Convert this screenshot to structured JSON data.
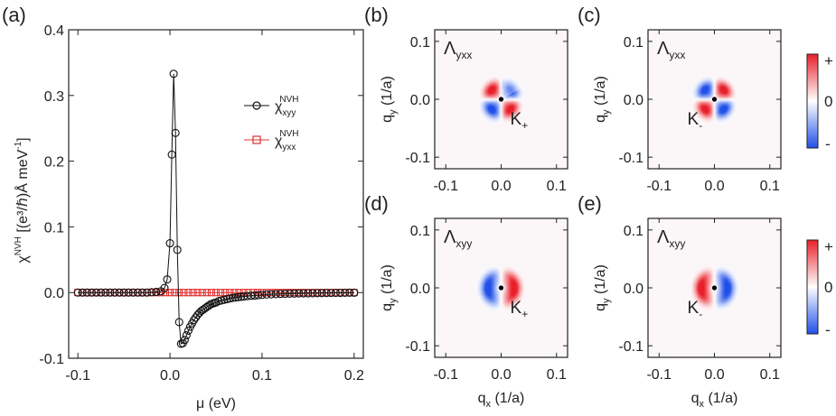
{
  "chart_data": [
    {
      "type": "line",
      "panel_label": "(a)",
      "xlabel": "μ (eV)",
      "ylabel_main": "χ",
      "ylabel_sup": "NVH",
      "ylabel_rest": " [(e³/ℏ)Å meV",
      "ylabel_rest_sup": "-1",
      "ylabel_end": "]",
      "xlim": [
        -0.11,
        0.21
      ],
      "ylim": [
        -0.1,
        0.4
      ],
      "xticks": [
        -0.1,
        0.0,
        0.1,
        0.2
      ],
      "xtick_labels": [
        "-0.1",
        "0.0",
        "0.1",
        "0.2"
      ],
      "yticks": [
        -0.1,
        0.0,
        0.1,
        0.2,
        0.3,
        0.4
      ],
      "ytick_labels": [
        "-0.1",
        "0.0",
        "0.1",
        "0.2",
        "0.3",
        "0.4"
      ],
      "series": [
        {
          "name": "χ_xyy^NVH",
          "legend_main": "χ",
          "legend_sub": "xyy",
          "legend_sup": "NVH",
          "color": "#111111",
          "marker": "circle",
          "x": [
            -0.1,
            -0.095,
            -0.09,
            -0.085,
            -0.08,
            -0.075,
            -0.07,
            -0.065,
            -0.06,
            -0.055,
            -0.05,
            -0.045,
            -0.04,
            -0.035,
            -0.03,
            -0.025,
            -0.02,
            -0.015,
            -0.01,
            -0.006,
            -0.003,
            0.0,
            0.002,
            0.004,
            0.006,
            0.008,
            0.01,
            0.012,
            0.014,
            0.016,
            0.018,
            0.02,
            0.022,
            0.024,
            0.026,
            0.028,
            0.03,
            0.032,
            0.034,
            0.036,
            0.038,
            0.04,
            0.042,
            0.044,
            0.046,
            0.048,
            0.05,
            0.053,
            0.056,
            0.059,
            0.062,
            0.065,
            0.068,
            0.071,
            0.074,
            0.077,
            0.08,
            0.084,
            0.088,
            0.092,
            0.096,
            0.1,
            0.105,
            0.11,
            0.115,
            0.12,
            0.125,
            0.13,
            0.135,
            0.14,
            0.145,
            0.15,
            0.155,
            0.16,
            0.165,
            0.17,
            0.175,
            0.18,
            0.185,
            0.19,
            0.195,
            0.2
          ],
          "y": [
            0,
            0,
            0,
            0,
            0,
            0,
            0,
            0,
            0,
            0,
            0,
            0,
            0,
            0,
            0,
            0,
            0.0005,
            0.001,
            0.002,
            0.007,
            0.02,
            0.075,
            0.21,
            0.333,
            0.243,
            0.065,
            -0.045,
            -0.078,
            -0.077,
            -0.072,
            -0.065,
            -0.058,
            -0.052,
            -0.047,
            -0.042,
            -0.038,
            -0.034,
            -0.031,
            -0.028,
            -0.026,
            -0.024,
            -0.022,
            -0.02,
            -0.018,
            -0.017,
            -0.016,
            -0.015,
            -0.013,
            -0.012,
            -0.011,
            -0.01,
            -0.009,
            -0.008,
            -0.0075,
            -0.007,
            -0.0065,
            -0.006,
            -0.0055,
            -0.005,
            -0.0045,
            -0.004,
            -0.0035,
            -0.003,
            -0.0027,
            -0.0024,
            -0.0021,
            -0.0019,
            -0.0017,
            -0.0015,
            -0.0013,
            -0.0012,
            -0.0011,
            -0.001,
            -0.0009,
            -0.0008,
            -0.0007,
            -0.0006,
            -0.0005,
            -0.0004,
            -0.0003,
            -0.0002,
            -0.0002
          ]
        },
        {
          "name": "χ_yxx^NVH",
          "legend_main": "χ",
          "legend_sub": "yxx",
          "legend_sup": "NVH",
          "color": "#e03030",
          "marker": "square",
          "x": [
            -0.1,
            -0.095,
            -0.09,
            -0.085,
            -0.08,
            -0.075,
            -0.07,
            -0.065,
            -0.06,
            -0.055,
            -0.05,
            -0.045,
            -0.04,
            -0.035,
            -0.03,
            -0.025,
            -0.02,
            -0.015,
            -0.01,
            -0.005,
            0.0,
            0.005,
            0.01,
            0.015,
            0.02,
            0.025,
            0.03,
            0.035,
            0.04,
            0.045,
            0.05,
            0.055,
            0.06,
            0.065,
            0.07,
            0.075,
            0.08,
            0.085,
            0.09,
            0.095,
            0.1,
            0.105,
            0.11,
            0.115,
            0.12,
            0.125,
            0.13,
            0.135,
            0.14,
            0.145,
            0.15,
            0.155,
            0.16,
            0.165,
            0.17,
            0.175,
            0.18,
            0.185,
            0.19,
            0.195,
            0.2
          ],
          "y": [
            0,
            0,
            0,
            0,
            0,
            0,
            0,
            0,
            0,
            0,
            0,
            0,
            0,
            0,
            0,
            0,
            0,
            0,
            0,
            0,
            0,
            0,
            0,
            0,
            0,
            0,
            0,
            0,
            0,
            0,
            0,
            0,
            0,
            0,
            0,
            0,
            0,
            0,
            0,
            0,
            0,
            0,
            0,
            0,
            0,
            0,
            0,
            0,
            0,
            0,
            0,
            0,
            0,
            0,
            0,
            0,
            0,
            0,
            0,
            0,
            0
          ]
        }
      ]
    },
    {
      "type": "heatmap",
      "panels": [
        {
          "label": "(b)",
          "quantity_main": "Λ",
          "quantity_sub": "yxx",
          "valley_main": "K",
          "valley_sub": "+",
          "component": "yxx",
          "valley": 1
        },
        {
          "label": "(c)",
          "quantity_main": "Λ",
          "quantity_sub": "yxx",
          "valley_main": "K",
          "valley_sub": "-",
          "component": "yxx",
          "valley": -1
        },
        {
          "label": "(d)",
          "quantity_main": "Λ",
          "quantity_sub": "xyy",
          "valley_main": "K",
          "valley_sub": "+",
          "component": "xyy",
          "valley": 1
        },
        {
          "label": "(e)",
          "quantity_main": "Λ",
          "quantity_sub": "xyy",
          "valley_main": "K",
          "valley_sub": "-",
          "component": "xyy",
          "valley": -1
        }
      ],
      "xlim": [
        -0.12,
        0.12
      ],
      "ylim": [
        -0.12,
        0.12
      ],
      "xticks": [
        -0.1,
        0.0,
        0.1
      ],
      "xtick_labels": [
        "-0.1",
        "0.0",
        "0.1"
      ],
      "yticks": [
        0.1,
        0.0,
        -0.1
      ],
      "ytick_labels": [
        "0.1",
        "0.0",
        "-0.1"
      ],
      "xlabel_main": "q",
      "xlabel_sub": "x",
      "xlabel_rest": " (1/a)",
      "ylabel_main": "q",
      "ylabel_sub": "y",
      "ylabel_rest": " (1/a)",
      "colorbar_labels": [
        "+",
        "0",
        "-"
      ],
      "colormap": {
        "positive": "#e8202a",
        "zero": "#ffffff",
        "negative": "#2050e8"
      }
    }
  ]
}
